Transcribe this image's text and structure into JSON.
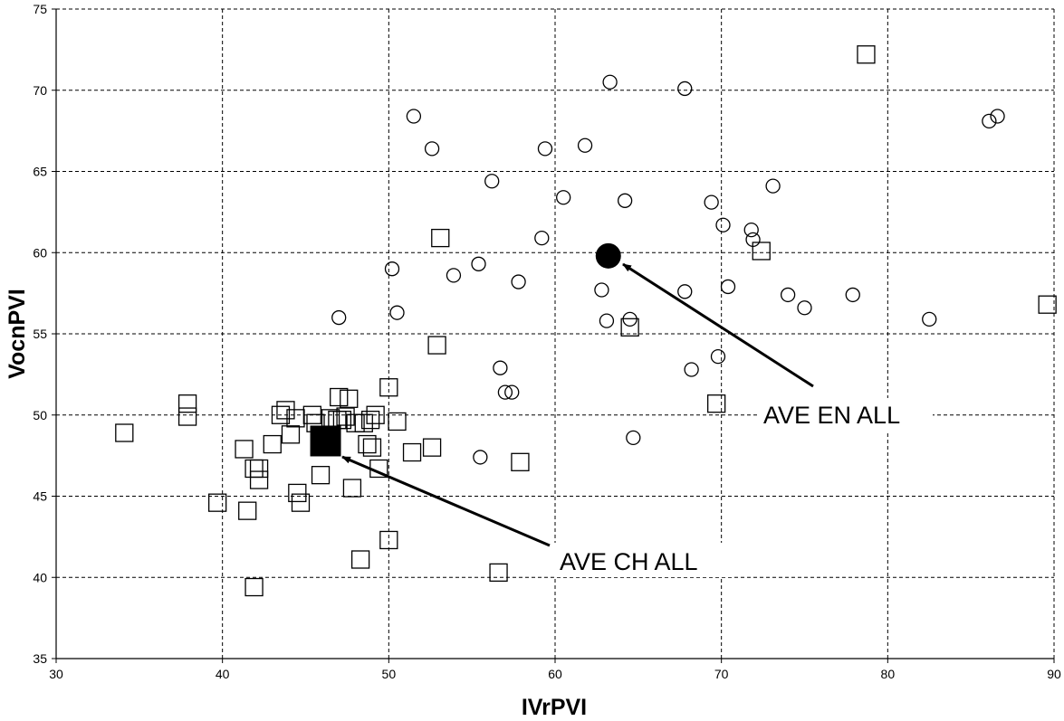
{
  "chart_data": {
    "type": "scatter",
    "title": "",
    "xlabel": "IVrPVI",
    "ylabel": "VocnPVI",
    "xlim": [
      30,
      90
    ],
    "ylim": [
      35,
      75
    ],
    "x_ticks": [
      "30",
      "40",
      "50",
      "60",
      "70",
      "80",
      "90"
    ],
    "y_ticks": [
      "35",
      "40",
      "45",
      "50",
      "55",
      "60",
      "65",
      "70",
      "75"
    ],
    "grid": true,
    "legend": "none",
    "series": [
      {
        "marker": "open-circle",
        "points": [
          [
            47.0,
            56.0
          ],
          [
            50.2,
            59.0
          ],
          [
            50.5,
            56.3
          ],
          [
            51.5,
            68.4
          ],
          [
            52.6,
            66.4
          ],
          [
            53.9,
            58.6
          ],
          [
            55.4,
            59.3
          ],
          [
            55.5,
            47.4
          ],
          [
            56.2,
            64.4
          ],
          [
            56.7,
            52.9
          ],
          [
            57.0,
            51.4
          ],
          [
            57.4,
            51.4
          ],
          [
            57.8,
            58.2
          ],
          [
            59.2,
            60.9
          ],
          [
            59.4,
            66.4
          ],
          [
            60.5,
            63.4
          ],
          [
            61.8,
            66.6
          ],
          [
            62.8,
            57.7
          ],
          [
            63.1,
            55.8
          ],
          [
            63.3,
            70.5
          ],
          [
            64.2,
            63.2
          ],
          [
            64.5,
            55.9
          ],
          [
            64.7,
            48.6
          ],
          [
            67.8,
            70.1
          ],
          [
            67.8,
            57.6
          ],
          [
            68.2,
            52.8
          ],
          [
            69.4,
            63.1
          ],
          [
            69.8,
            53.6
          ],
          [
            70.1,
            61.7
          ],
          [
            70.4,
            57.9
          ],
          [
            71.8,
            61.4
          ],
          [
            71.9,
            60.8
          ],
          [
            73.1,
            64.1
          ],
          [
            74.0,
            57.4
          ],
          [
            75.0,
            56.6
          ],
          [
            77.9,
            57.4
          ],
          [
            82.5,
            55.9
          ],
          [
            86.1,
            68.1
          ],
          [
            86.6,
            68.4
          ]
        ]
      },
      {
        "marker": "open-square",
        "points": [
          [
            34.1,
            48.9
          ],
          [
            37.9,
            50.7
          ],
          [
            37.9,
            49.9
          ],
          [
            39.7,
            44.6
          ],
          [
            41.3,
            47.9
          ],
          [
            41.5,
            44.1
          ],
          [
            41.9,
            39.4
          ],
          [
            41.9,
            46.7
          ],
          [
            42.2,
            46.7
          ],
          [
            42.2,
            46.0
          ],
          [
            43.0,
            48.2
          ],
          [
            43.5,
            50.0
          ],
          [
            43.8,
            50.3
          ],
          [
            44.1,
            48.8
          ],
          [
            44.4,
            49.8
          ],
          [
            44.5,
            45.2
          ],
          [
            44.7,
            44.6
          ],
          [
            45.4,
            50.0
          ],
          [
            45.6,
            49.5
          ],
          [
            45.9,
            46.3
          ],
          [
            46.5,
            49.8
          ],
          [
            46.9,
            49.7
          ],
          [
            47.0,
            51.1
          ],
          [
            47.2,
            49.7
          ],
          [
            47.4,
            49.9
          ],
          [
            47.6,
            51.0
          ],
          [
            47.8,
            45.5
          ],
          [
            48.0,
            49.5
          ],
          [
            48.3,
            41.1
          ],
          [
            48.5,
            49.5
          ],
          [
            48.7,
            48.2
          ],
          [
            48.9,
            49.7
          ],
          [
            49.0,
            48.0
          ],
          [
            49.2,
            50.0
          ],
          [
            49.4,
            46.7
          ],
          [
            50.0,
            51.7
          ],
          [
            50.0,
            42.3
          ],
          [
            50.5,
            49.6
          ],
          [
            51.4,
            47.7
          ],
          [
            52.6,
            48.0
          ],
          [
            52.9,
            54.3
          ],
          [
            53.1,
            60.9
          ],
          [
            56.6,
            40.3
          ],
          [
            57.9,
            47.1
          ],
          [
            64.5,
            55.4
          ],
          [
            69.7,
            50.7
          ],
          [
            72.4,
            60.1
          ],
          [
            78.7,
            72.2
          ],
          [
            89.6,
            56.8
          ]
        ]
      },
      {
        "name": "AVE EN ALL",
        "marker": "filled-circle",
        "points": [
          [
            63.2,
            59.8
          ]
        ]
      },
      {
        "name": "AVE CH ALL",
        "marker": "filled-square",
        "points": [
          [
            46.2,
            48.4
          ]
        ]
      }
    ],
    "annotations": [
      {
        "text": "AVE EN ALL",
        "points_to": [
          63.2,
          59.8
        ]
      },
      {
        "text": "AVE CH ALL",
        "points_to": [
          46.2,
          48.4
        ]
      }
    ]
  }
}
